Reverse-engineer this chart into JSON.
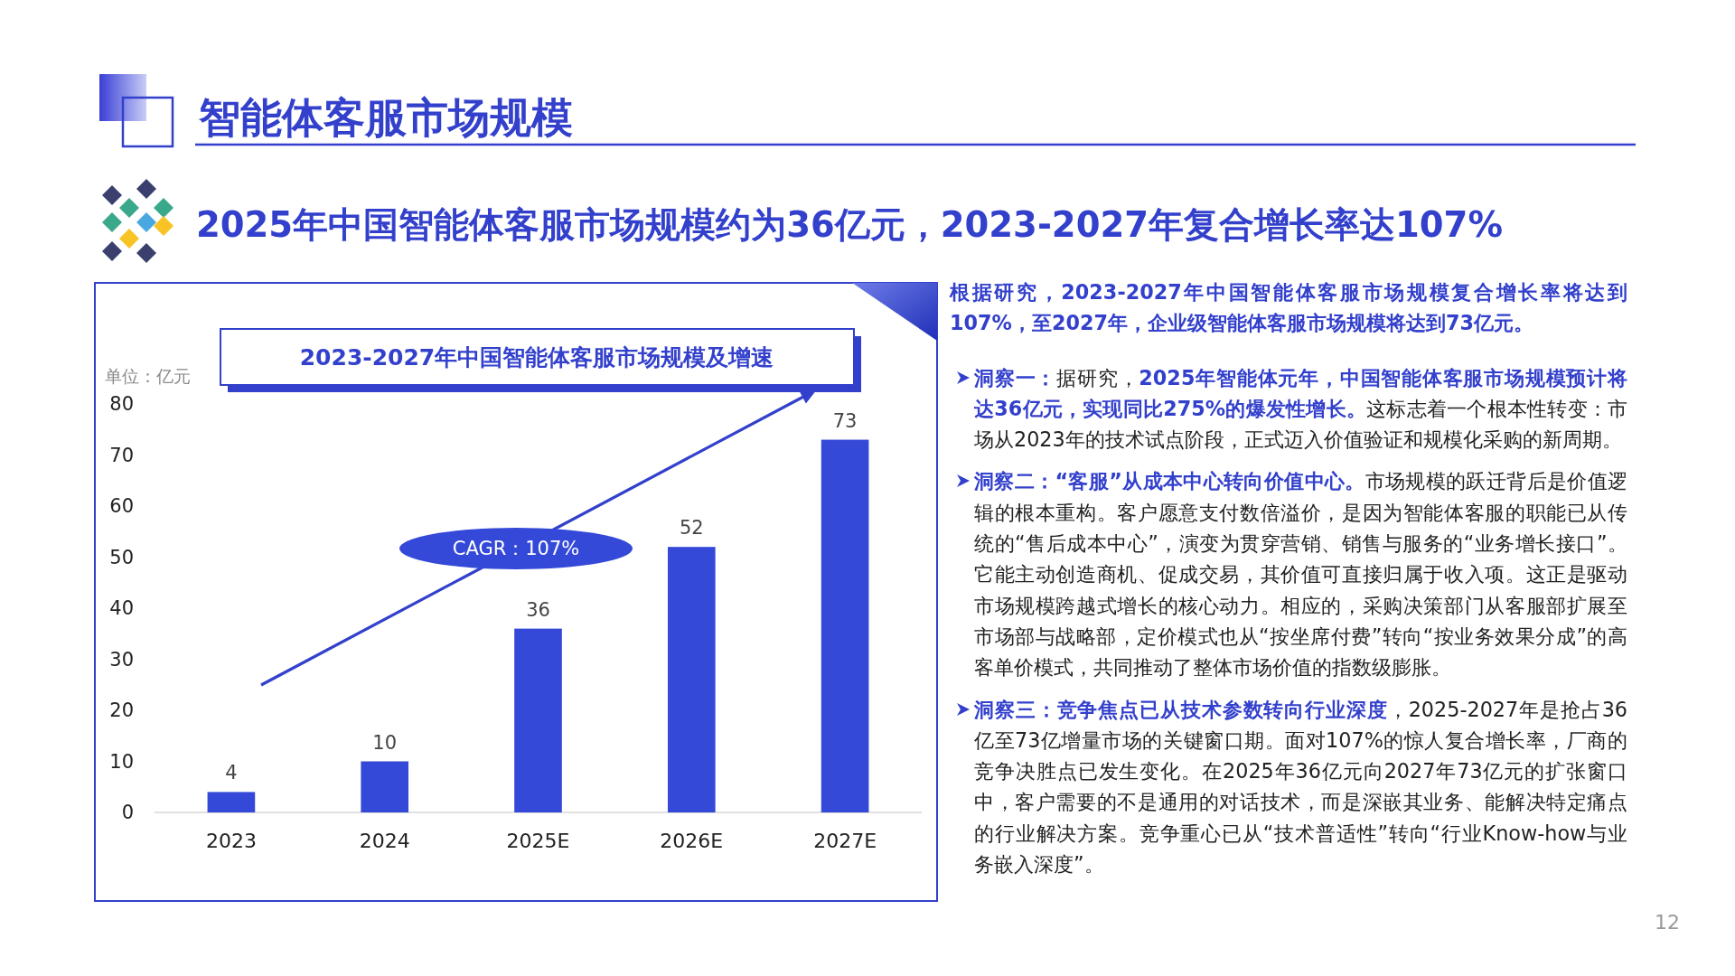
{
  "chart_data": {
    "type": "bar",
    "title": "2023-2027年中国智能体客服市场规模及增速",
    "subtitle": "2025年中国智能体客服市场规模约为36亿元，2023-2027年复合增长率达107%",
    "ylabel": "单位：亿元",
    "categories": [
      "2023",
      "2024",
      "2025E",
      "2026E",
      "2027E"
    ],
    "values": [
      4,
      10,
      36,
      52,
      73
    ],
    "color": "#3449d8",
    "ylim": [
      0,
      80
    ],
    "yticks": [
      0,
      10,
      20,
      30,
      40,
      50,
      60,
      70,
      80
    ],
    "data_labels": true,
    "annotations": [
      "智能体客服市场规模",
      "CAGR：107%",
      "根据研究，2023-2027年中国智能体客服市场规模复合增长率将达到107%，至2027年，企业级智能体客服市场规模将达到73亿元。",
      "洞察一：据研究，2025年智能体元年，中国智能体客服市场规模预计将达36亿元，实现同比275%的爆发性增长。这标志着一个根本性转变：市场从2023年的技术试点阶段，正式迈入价值验证和规模化采购的新周期。",
      "洞察二：“客服”从成本中心转向价值中心。市场规模的跃迁背后是价值逻辑的根本重构。客户愿意支付数倍溢价，是因为智能体客服的职能已从传统的“售后成本中心”，演变为贯穿营销、销售与服务的“业务增长接口”。它能主动创造商机、促成交易，其价值可直接归属于收入项。这正是驱动市场规模跨越式增长的核心动力。相应的，采购决策部门从客服部扩展至市场部与战略部，定价模式也从“按坐席付费”转向“按业务效果分成”的高客单价模式，共同推动了整体市场价值的指数级膨胀。",
      "洞察三：竞争焦点已从技术参数转向行业深度，2025-2027年是抢占36亿至73亿增量市场的关键窗口期。面对107%的惊人复合增长率，厂商的竞争决胜点已发生变化。在2025年36亿元向2027年73亿元的扩张窗口中，客户需要的不是通用的对话技术，而是深嵌其业务、能解决特定痛点的行业解决方案。竞争重心已从“技术普适性”转向“行业Know-how与业务嵌入深度”。",
      "12"
    ]
  }
}
